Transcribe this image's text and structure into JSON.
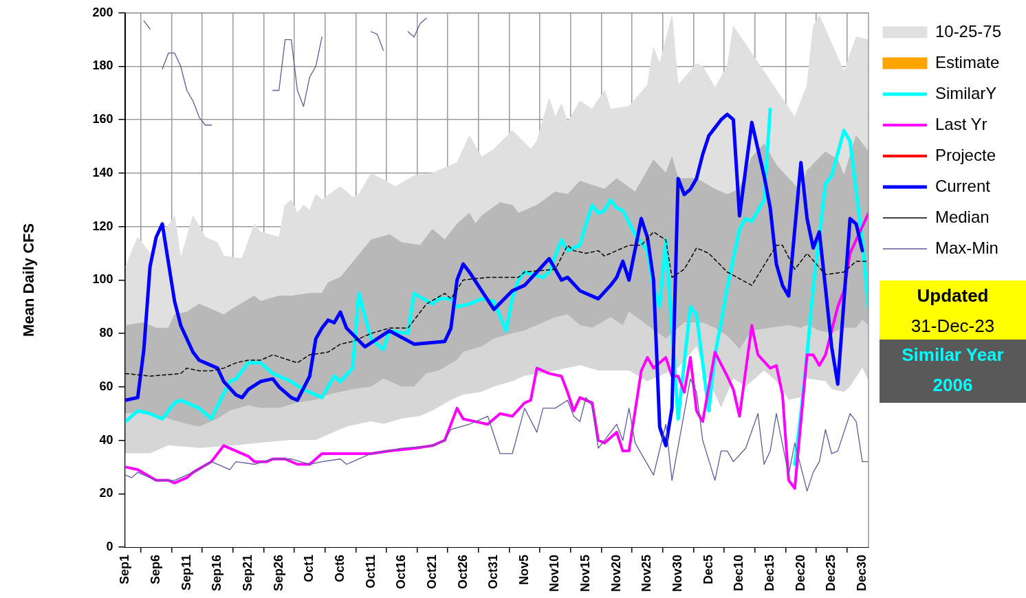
{
  "chart_data": {
    "type": "line",
    "ylabel": "Mean Daily CFS",
    "xlim": [
      "--09-01",
      "--12-31"
    ],
    "xticks": [
      {
        "value": "--09-01",
        "label": "Sep1"
      },
      {
        "value": "--09-06",
        "label": "Sep6"
      },
      {
        "value": "--09-11",
        "label": "Sep11"
      },
      {
        "value": "--09-16",
        "label": "Sep16"
      },
      {
        "value": "--09-21",
        "label": "Sep21"
      },
      {
        "value": "--09-26",
        "label": "Sep26"
      },
      {
        "value": "--10-01",
        "label": "Oct1"
      },
      {
        "value": "--10-06",
        "label": "Oct6"
      },
      {
        "value": "--10-11",
        "label": "Oct11"
      },
      {
        "value": "--10-16",
        "label": "Oct16"
      },
      {
        "value": "--10-21",
        "label": "Oct21"
      },
      {
        "value": "--10-26",
        "label": "Oct26"
      },
      {
        "value": "--10-31",
        "label": "Oct31"
      },
      {
        "value": "--11-05",
        "label": "Nov5"
      },
      {
        "value": "--11-10",
        "label": "Nov10"
      },
      {
        "value": "--11-15",
        "label": "Nov15"
      },
      {
        "value": "--11-20",
        "label": "Nov20"
      },
      {
        "value": "--11-25",
        "label": "Nov25"
      },
      {
        "value": "--11-30",
        "label": "Nov30"
      },
      {
        "value": "--12-05",
        "label": "Dec5"
      },
      {
        "value": "--12-10",
        "label": "Dec10"
      },
      {
        "value": "--12-15",
        "label": "Dec15"
      },
      {
        "value": "--12-20",
        "label": "Dec20"
      },
      {
        "value": "--12-25",
        "label": "Dec25"
      },
      {
        "value": "--12-30",
        "label": "Dec30"
      }
    ],
    "ylim": [
      0,
      200
    ],
    "yticks": [
      0,
      20,
      40,
      60,
      80,
      100,
      120,
      140,
      160,
      180,
      200
    ],
    "grid": true,
    "legend": "right",
    "marker": "none",
    "annotations": [
      "Updated",
      "31-Dec-23",
      "Similar Year",
      "2006"
    ],
    "series": [
      {
        "name": "10-25-75",
        "type": "area",
        "color": "#e0e0e0",
        "x": [
          "--09-01",
          "--09-03",
          "--09-05",
          "--09-09",
          "--09-10",
          "--09-12",
          "--09-14",
          "--09-16",
          "--09-17",
          "--09-20",
          "--09-22",
          "--09-23",
          "--09-26",
          "--09-27",
          "--09-28",
          "--09-29",
          "--09-30",
          "--10-01",
          "--10-02",
          "--10-03",
          "--10-06",
          "--10-08",
          "--10-09",
          "--10-11",
          "--10-15",
          "--10-18",
          "--10-21",
          "--10-25",
          "--10-27",
          "--10-29",
          "--10-31",
          "--11-03",
          "--11-06",
          "--11-07",
          "--11-09",
          "--11-10",
          "--11-11",
          "--11-12",
          "--11-14",
          "--11-16",
          "--11-18",
          "--11-19",
          "--11-22",
          "--11-25",
          "--11-26",
          "--11-27",
          "--11-29",
          "--11-30",
          "--12-03",
          "--12-04",
          "--12-06",
          "--12-08",
          "--12-09",
          "--12-10",
          "--12-18",
          "--12-19",
          "--12-21",
          "--12-22",
          "--12-23",
          "--12-24",
          "--12-26",
          "--12-27",
          "--12-29",
          "--12-31"
        ],
        "values": [
          105,
          116,
          110,
          124,
          108,
          124,
          116,
          114,
          109,
          108,
          121,
          118,
          116,
          128,
          130,
          125,
          128,
          126,
          132,
          130,
          135,
          131,
          132,
          140,
          135,
          139,
          140,
          144,
          154,
          146,
          149,
          156,
          149,
          152,
          168,
          161,
          166,
          159,
          167,
          164,
          171,
          164,
          165,
          173,
          187,
          181,
          199,
          173,
          181,
          180,
          172,
          180,
          195,
          null,
          null,
          161,
          173,
          195,
          199,
          null,
          null,
          178,
          191,
          190
        ]
      },
      {
        "type": "area",
        "color": "#b8b8b8",
        "x": [
          "--09-01",
          "--09-04",
          "--09-06",
          "--09-08",
          "--09-09",
          "--09-11",
          "--09-13",
          "--09-16",
          "--09-17",
          "--09-19",
          "--09-22",
          "--09-23",
          "--09-26",
          "--09-28",
          "--10-01",
          "--10-03",
          "--10-04",
          "--10-06",
          "--10-11",
          "--10-14",
          "--10-16",
          "--10-19",
          "--10-21",
          "--10-23",
          "--10-25",
          "--10-27",
          "--10-28",
          "--10-29",
          "--11-01",
          "--11-03",
          "--11-04",
          "--11-07",
          "--11-10",
          "--11-12",
          "--11-14",
          "--11-18",
          "--11-20",
          "--11-23",
          "--11-26",
          "--11-28",
          "--11-29",
          "--11-30",
          "--12-03",
          "--12-06",
          "--12-08",
          "--12-10",
          "--12-12",
          "--12-14",
          "--12-16",
          "--12-18",
          "--12-20",
          "--12-21",
          "--12-24",
          "--12-26",
          "--12-27",
          "--12-29",
          "--12-31"
        ],
        "values": [
          83,
          84,
          82,
          82,
          87,
          88,
          91,
          88,
          87,
          90,
          94,
          92,
          94,
          94,
          95,
          95,
          99,
          101,
          115,
          117,
          114,
          113,
          119,
          115,
          121,
          125,
          121,
          124,
          129,
          128,
          125,
          128,
          133,
          132,
          137,
          134,
          138,
          133,
          145,
          140,
          146,
          138,
          138,
          134,
          132,
          134,
          146,
          151,
          143,
          138,
          133,
          141,
          148,
          145,
          139,
          154,
          148
        ]
      },
      {
        "type": "area",
        "color": "#d6d6d6",
        "x": [
          "--09-01",
          "--09-04",
          "--09-08",
          "--09-11",
          "--09-13",
          "--09-16",
          "--09-18",
          "--09-21",
          "--09-23",
          "--09-26",
          "--09-29",
          "--10-02",
          "--10-04",
          "--10-06",
          "--10-08",
          "--10-11",
          "--10-13",
          "--10-16",
          "--10-18",
          "--10-20",
          "--10-22",
          "--10-25",
          "--10-26",
          "--10-29",
          "--10-31",
          "--11-03",
          "--11-05",
          "--11-08",
          "--11-10",
          "--11-12",
          "--11-14",
          "--11-16",
          "--11-19",
          "--11-21",
          "--11-22",
          "--11-25",
          "--11-28",
          "--12-01",
          "--12-04",
          "--12-06",
          "--12-08",
          "--12-10",
          "--12-12",
          "--12-15",
          "--12-18",
          "--12-20",
          "--12-21",
          "--12-23",
          "--12-25",
          "--12-27",
          "--12-29",
          "--12-30",
          "--12-31"
        ],
        "values": [
          50,
          50,
          48,
          46,
          45,
          48,
          51,
          53,
          52,
          52,
          54,
          55,
          57,
          58,
          59,
          60,
          63,
          60,
          60,
          65,
          66,
          70,
          73,
          75,
          78,
          80,
          81,
          84,
          86,
          87,
          83,
          82,
          86,
          83,
          88,
          83,
          78,
          84,
          84,
          82,
          79,
          74,
          81,
          82,
          83,
          82,
          83,
          81,
          80,
          82,
          82,
          85,
          83
        ]
      },
      {
        "type": "area",
        "color": "#ffffff",
        "x": [
          "--09-01",
          "--09-05",
          "--09-08",
          "--09-13",
          "--09-19",
          "--09-23",
          "--09-28",
          "--10-02",
          "--10-05",
          "--10-07",
          "--10-11",
          "--10-13",
          "--10-16",
          "--10-19",
          "--10-21",
          "--10-24",
          "--10-26",
          "--10-29",
          "--10-31",
          "--11-03",
          "--11-05",
          "--11-08",
          "--11-12",
          "--11-14",
          "--11-17",
          "--11-19",
          "--11-22",
          "--11-25",
          "--11-27",
          "--11-30",
          "--12-03",
          "--12-04",
          "--12-07",
          "--12-09",
          "--12-11",
          "--12-14",
          "--12-16",
          "--12-18",
          "--12-20",
          "--12-21",
          "--12-24",
          "--12-25",
          "--12-27",
          "--12-28",
          "--12-30",
          "--12-31"
        ],
        "values": [
          35,
          35,
          38,
          37,
          38,
          39,
          40,
          40,
          43,
          45,
          47,
          46,
          48,
          49,
          51,
          55,
          57,
          58,
          60,
          62,
          64,
          65,
          67,
          68,
          66,
          66,
          66,
          62,
          64,
          67,
          75,
          67,
          52,
          63,
          60,
          66,
          62,
          55,
          56,
          63,
          62,
          59,
          58,
          60,
          67,
          62
        ]
      },
      {
        "name": "Estimate",
        "type": "bar",
        "color": "#ffa500"
      },
      {
        "name": "SimilarY",
        "color": "#00ffff",
        "x": [
          "--09-01",
          "--09-03",
          "--09-05",
          "--09-07",
          "--09-09",
          "--09-10",
          "--09-13",
          "--09-15",
          "--09-16",
          "--09-18",
          "--09-19",
          "--09-21",
          "--09-23",
          "--09-25",
          "--09-28",
          "--09-30",
          "--10-03",
          "--10-05",
          "--10-06",
          "--10-08",
          "--10-09",
          "--10-11",
          "--10-13",
          "--10-14",
          "--10-17",
          "--10-18",
          "--10-21",
          "--10-22",
          "--10-24",
          "--10-25",
          "--10-27",
          "--10-29",
          "--10-31",
          "--11-02",
          "--11-03",
          "--11-04",
          "--11-05",
          "--11-08",
          "--11-09",
          "--11-11",
          "--11-12",
          "--11-14",
          "--11-15",
          "--11-16",
          "--11-17",
          "--11-18",
          "--11-19",
          "--11-20",
          "--11-21",
          "--11-23",
          "--11-25",
          "--11-26",
          "--11-27",
          "--11-28",
          "--11-30",
          "--12-02",
          "--12-03",
          "--12-05",
          "--12-06",
          "--12-07",
          "--12-08",
          "--12-10",
          "--12-11",
          "--12-12",
          "--12-14",
          "--12-15",
          "--12-16",
          "--12-17",
          "--12-18",
          "--12-19",
          "--12-20",
          "--12-21",
          "--12-22",
          "--12-24",
          "--12-25",
          "--12-27",
          "--12-28",
          "--12-30",
          "--12-31"
        ],
        "values": [
          47,
          51,
          50,
          48,
          54,
          55,
          52,
          48,
          53,
          62,
          63,
          69,
          69,
          65,
          62,
          59,
          56,
          64,
          62,
          67,
          95,
          78,
          74,
          81,
          80,
          95,
          91,
          93,
          93,
          90,
          91,
          93,
          92,
          81,
          93,
          100,
          103,
          101,
          103,
          115,
          111,
          113,
          121,
          128,
          125,
          126,
          130,
          127,
          126,
          117,
          111,
          97,
          90,
          115,
          48,
          90,
          87,
          51,
          72,
          84,
          97,
          119,
          123,
          122,
          130,
          164,
          null,
          null,
          null,
          31,
          50,
          72,
          97,
          136,
          139,
          156,
          152,
          115,
          90
        ]
      },
      {
        "name": "Last Yr",
        "color": "#ff00ff",
        "x": [
          "--09-01",
          "--09-03",
          "--09-06",
          "--09-08",
          "--09-09",
          "--09-11",
          "--09-12",
          "--09-15",
          "--09-17",
          "--09-19",
          "--09-21",
          "--09-22",
          "--09-24",
          "--09-25",
          "--09-27",
          "--09-29",
          "--10-01",
          "--10-03",
          "--10-11",
          "--10-14",
          "--10-18",
          "--10-21",
          "--10-23",
          "--10-25",
          "--10-26",
          "--10-28",
          "--10-30",
          "--11-01",
          "--11-03",
          "--11-05",
          "--11-06",
          "--11-07",
          "--11-09",
          "--11-11",
          "--11-12",
          "--11-13",
          "--11-14",
          "--11-16",
          "--11-17",
          "--11-18",
          "--11-20",
          "--11-21",
          "--11-22",
          "--11-24",
          "--11-25",
          "--11-26",
          "--11-28",
          "--11-29",
          "--11-30",
          "--12-01",
          "--12-02",
          "--12-03",
          "--12-04",
          "--12-06",
          "--12-08",
          "--12-09",
          "--12-10",
          "--12-12",
          "--12-13",
          "--12-15",
          "--12-16",
          "--12-17",
          "--12-18",
          "--12-19",
          "--12-21",
          "--12-22",
          "--12-23",
          "--12-24",
          "--12-26",
          "--12-27",
          "--12-28",
          "--12-31"
        ],
        "values": [
          30,
          29,
          25,
          25,
          24,
          26,
          28,
          32,
          38,
          36,
          34,
          32,
          32,
          33,
          33,
          31,
          31,
          35,
          35,
          36,
          37,
          38,
          40,
          52,
          48,
          47,
          46,
          50,
          49,
          54,
          55,
          67,
          65,
          64,
          58,
          51,
          56,
          54,
          40,
          39,
          43,
          36,
          36,
          66,
          71,
          67,
          71,
          64,
          64,
          58,
          71,
          51,
          47,
          73,
          64,
          59,
          49,
          83,
          72,
          67,
          68,
          57,
          25,
          22,
          72,
          72,
          68,
          72,
          90,
          96,
          110,
          125
        ]
      },
      {
        "name": "Projecte",
        "color": "#ff0000"
      },
      {
        "name": "Current",
        "color": "#0000ff",
        "x": [
          "--09-01",
          "--09-03",
          "--09-04",
          "--09-05",
          "--09-06",
          "--09-07",
          "--09-09",
          "--09-10",
          "--09-12",
          "--09-13",
          "--09-14",
          "--09-16",
          "--09-17",
          "--09-19",
          "--09-20",
          "--09-21",
          "--09-23",
          "--09-25",
          "--09-26",
          "--09-28",
          "--09-29",
          "--10-01",
          "--10-02",
          "--10-03",
          "--10-04",
          "--10-05",
          "--10-06",
          "--10-07",
          "--10-10",
          "--10-14",
          "--10-18",
          "--10-23",
          "--10-24",
          "--10-25",
          "--10-26",
          "--10-27",
          "--10-29",
          "--10-31",
          "--11-03",
          "--11-05",
          "--11-07",
          "--11-09",
          "--11-10",
          "--11-11",
          "--11-12",
          "--11-14",
          "--11-17",
          "--11-19",
          "--11-20",
          "--11-21",
          "--11-22",
          "--11-24",
          "--11-25",
          "--11-26",
          "--11-27",
          "--11-28",
          "--11-29",
          "--11-30",
          "--12-01",
          "--12-02",
          "--12-03",
          "--12-04",
          "--12-05",
          "--12-06",
          "--12-07",
          "--12-08",
          "--12-09",
          "--12-10",
          "--12-12",
          "--12-14",
          "--12-15",
          "--12-16",
          "--12-17",
          "--12-18",
          "--12-20",
          "--12-21",
          "--12-22",
          "--12-23",
          "--12-24",
          "--12-25",
          "--12-26",
          "--12-28",
          "--12-29",
          "--12-30"
        ],
        "values": [
          55,
          56,
          74,
          105,
          116,
          121,
          92,
          83,
          73,
          70,
          69,
          67,
          62,
          57,
          56,
          59,
          62,
          63,
          60,
          56,
          55,
          64,
          78,
          82,
          85,
          84,
          88,
          82,
          75,
          81,
          76,
          77,
          82,
          100,
          106,
          103,
          96,
          89,
          96,
          98,
          103,
          108,
          104,
          100,
          101,
          96,
          93,
          98,
          101,
          107,
          100,
          123,
          116,
          100,
          45,
          38,
          52,
          138,
          132,
          134,
          138,
          147,
          154,
          157,
          160,
          162,
          160,
          124,
          159,
          139,
          127,
          106,
          98,
          94,
          144,
          123,
          112,
          118,
          97,
          75,
          61,
          123,
          121,
          111
        ]
      },
      {
        "name": "Median",
        "color": "#000000",
        "line_style": "dashed",
        "x": [
          "--09-01",
          "--09-05",
          "--09-10",
          "--09-11",
          "--09-13",
          "--09-15",
          "--09-17",
          "--09-19",
          "--09-21",
          "--09-23",
          "--09-25",
          "--09-29",
          "--10-01",
          "--10-04",
          "--10-06",
          "--10-08",
          "--10-11",
          "--10-14",
          "--10-17",
          "--10-20",
          "--10-23",
          "--10-24",
          "--10-26",
          "--10-30",
          "--11-04",
          "--11-05",
          "--11-10",
          "--11-12",
          "--11-13",
          "--11-15",
          "--11-17",
          "--11-18",
          "--11-20",
          "--11-22",
          "--11-24",
          "--11-26",
          "--11-28",
          "--11-29",
          "--12-01",
          "--12-03",
          "--12-05",
          "--12-08",
          "--12-12",
          "--12-16",
          "--12-17",
          "--12-19",
          "--12-21",
          "--12-24",
          "--12-27",
          "--12-29",
          "--12-31"
        ],
        "values": [
          65,
          64,
          65,
          67,
          66,
          66,
          67,
          69,
          70,
          70,
          72,
          69,
          72,
          73,
          76,
          77,
          80,
          82,
          82,
          91,
          95,
          93,
          100,
          101,
          101,
          103,
          104,
          113,
          111,
          110,
          111,
          109,
          111,
          113,
          113,
          118,
          115,
          101,
          104,
          112,
          110,
          103,
          98,
          113,
          113,
          104,
          110,
          102,
          103,
          107,
          107
        ]
      },
      {
        "name": "Max-Min",
        "color": "#5c5c98",
        "x": [
          "--09-04",
          "--09-05",
          "--09-06",
          "--09-07",
          "--09-08",
          "--09-09",
          "--09-10",
          "--09-11",
          "--09-12",
          "--09-13",
          "--09-14",
          "--09-15",
          "--09-16",
          "--09-25",
          "--09-26",
          "--09-27",
          "--09-28",
          "--09-29",
          "--09-30",
          "--10-01",
          "--10-02",
          "--10-03",
          "--10-04",
          "--10-11",
          "--10-12",
          "--10-13",
          "--10-14",
          "--10-17",
          "--10-18",
          "--10-19",
          "--10-20"
        ],
        "values": [
          197,
          194,
          null,
          179,
          185,
          185,
          180,
          171,
          167,
          161,
          158,
          158,
          null,
          171,
          171,
          190,
          190,
          171,
          165,
          176,
          180,
          191,
          null,
          193,
          192,
          186,
          null,
          193,
          191,
          196,
          198
        ]
      },
      {
        "color": "#5c5c98",
        "x": [
          "--09-01",
          "--09-02",
          "--09-03",
          "--09-06",
          "--09-09",
          "--09-12",
          "--09-15",
          "--09-17",
          "--09-18",
          "--09-19",
          "--09-22",
          "--09-25",
          "--09-28",
          "--10-01",
          "--10-03",
          "--10-06",
          "--10-07",
          "--10-11",
          "--10-16",
          "--10-21",
          "--10-23",
          "--10-24",
          "--10-27",
          "--10-30",
          "--11-01",
          "--11-03",
          "--11-05",
          "--11-07",
          "--11-08",
          "--11-10",
          "--11-12",
          "--11-13",
          "--11-14",
          "--11-15",
          "--11-16",
          "--11-17",
          "--11-18",
          "--11-20",
          "--11-21",
          "--11-22",
          "--11-23",
          "--11-26",
          "--11-28",
          "--11-29",
          "--12-02",
          "--12-03",
          "--12-04",
          "--12-06",
          "--12-07",
          "--12-08",
          "--12-09",
          "--12-11",
          "--12-13",
          "--12-14",
          "--12-15",
          "--12-16",
          "--12-18",
          "--12-19",
          "--12-21",
          "--12-22",
          "--12-23",
          "--12-24",
          "--12-25",
          "--12-26",
          "--12-28",
          "--12-29",
          "--12-30",
          "--12-31"
        ],
        "values": [
          27,
          26,
          28,
          25,
          25,
          28,
          32,
          30,
          29,
          32,
          31,
          33,
          33,
          31,
          32,
          33,
          31,
          35,
          37,
          38,
          40,
          44,
          46,
          49,
          35,
          35,
          52,
          43,
          52,
          52,
          55,
          49,
          47,
          56,
          53,
          37,
          40,
          46,
          40,
          52,
          39,
          27,
          46,
          25,
          63,
          58,
          40,
          25,
          36,
          36,
          32,
          37,
          50,
          31,
          36,
          50,
          27,
          39,
          21,
          28,
          32,
          44,
          35,
          36,
          50,
          47,
          32,
          32
        ]
      }
    ]
  }
}
